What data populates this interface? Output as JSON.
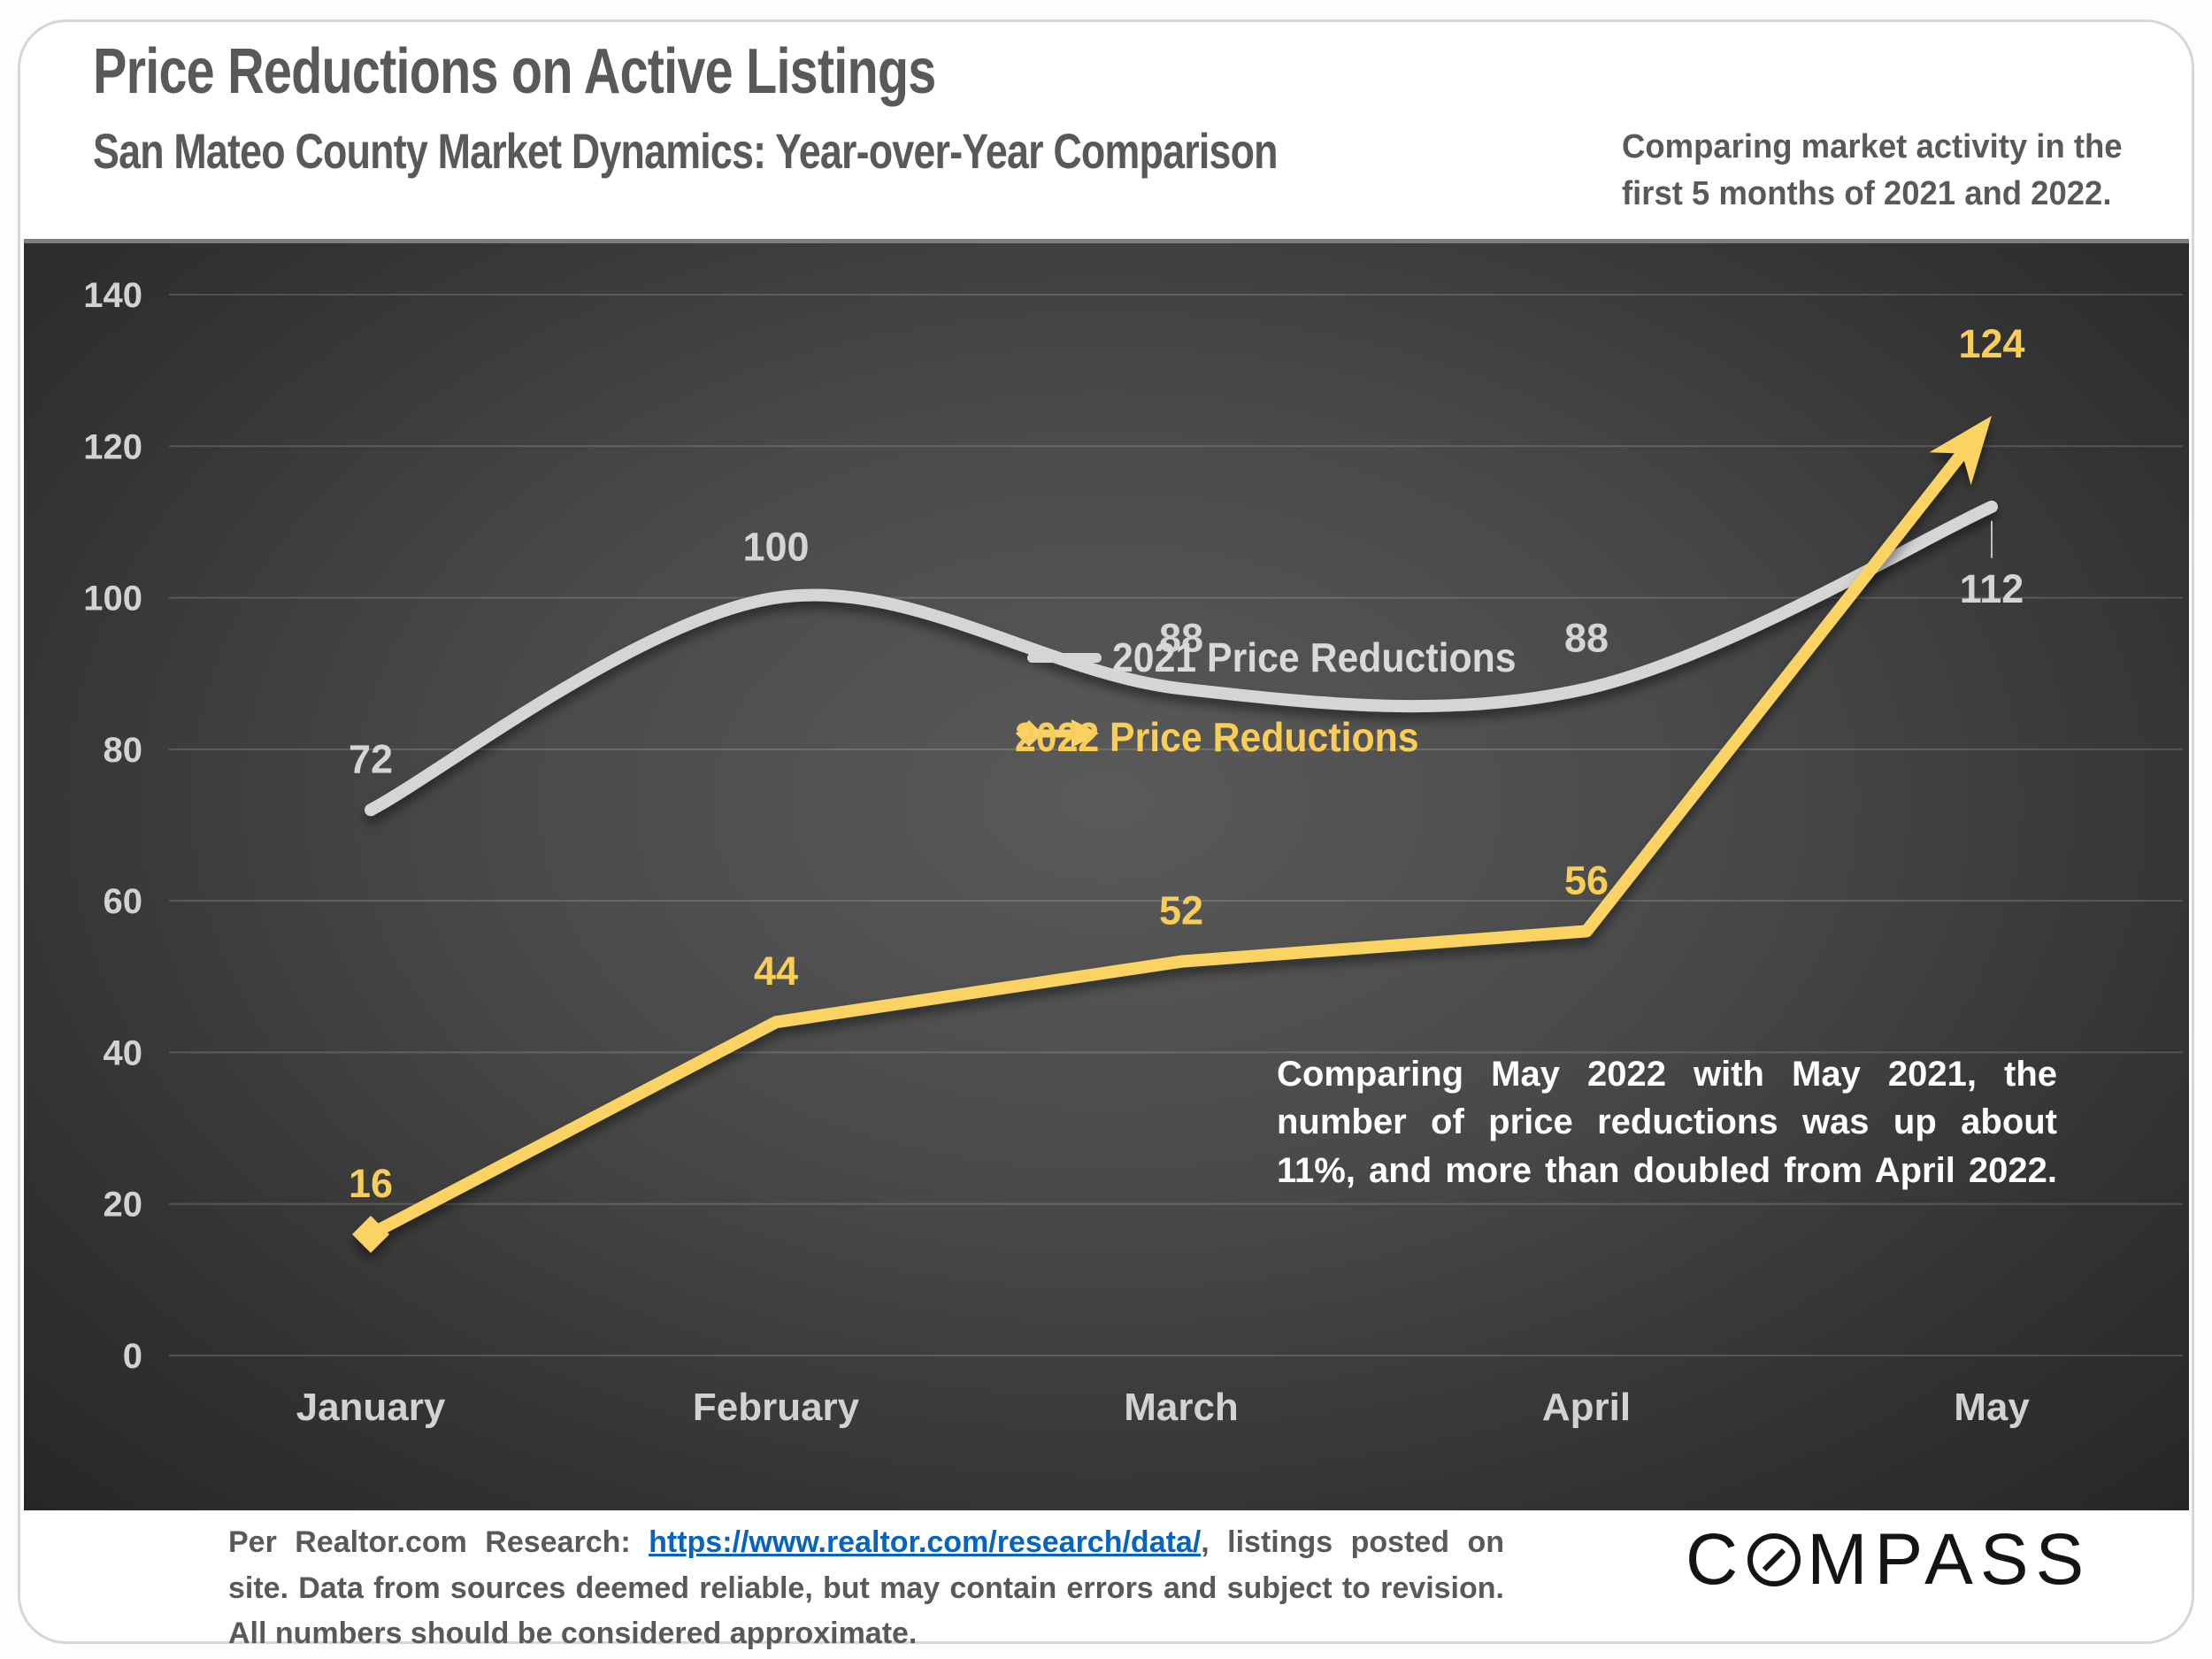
{
  "header": {
    "title": "Price Reductions on Active Listings",
    "subtitle": "San Mateo County Market Dynamics: Year-over-Year Comparison",
    "note": "Comparing market activity in the first 5 months of 2021 and 2022."
  },
  "chart_data": {
    "type": "line",
    "categories": [
      "January",
      "February",
      "March",
      "April",
      "May"
    ],
    "series": [
      {
        "name": "2021 Price Reductions",
        "values": [
          72,
          100,
          88,
          88,
          112
        ],
        "color": "#d6d4d4",
        "label_color": "#d6d4d4",
        "style": "smooth"
      },
      {
        "name": "2022 Price Reductions",
        "values": [
          16,
          44,
          52,
          56,
          124
        ],
        "color": "#fbd364",
        "label_color": "#f8cd58",
        "style": "straight",
        "start_marker": "diamond",
        "end_marker": "arrow"
      }
    ],
    "ylim": [
      0,
      140
    ],
    "yticks": [
      0,
      20,
      40,
      60,
      80,
      100,
      120,
      140
    ],
    "grid": true,
    "legend_position": "top-center",
    "annotation": "Comparing May 2022 with May 2021, the number of price reductions was up about 11%, and more than doubled from April 2022."
  },
  "footer": {
    "source_prefix": "Per Realtor.com Research: ",
    "link_text": "https://www.realtor.com/research/data/",
    "source_suffix": ", listings posted on site. Data from sources deemed reliable, but may contain errors and subject to revision. All numbers should be considered approximate.",
    "logo_first_letter": "C",
    "logo_rest": "MPASS"
  },
  "colors": {
    "accent_yellow": "#fbd364",
    "line_gray": "#d6d4d4",
    "tick_text": "#d2d2d2",
    "heading_gray": "#595959",
    "link_blue": "#0563c1",
    "panel_edge": "#7e7e7e",
    "grid_line": "rgba(255,255,255,0.16)"
  }
}
